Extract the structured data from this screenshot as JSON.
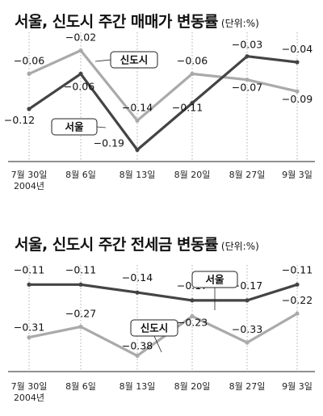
{
  "chart_data": [
    {
      "type": "line",
      "title": "서울, 신도시 주간 매매가 변동률",
      "unit": "(단위:%)",
      "categories": [
        "7월 30일",
        "8월 6일",
        "8월 13일",
        "8월 20일",
        "8월 27일",
        "9월 3일"
      ],
      "categories_sub": [
        "2004년",
        "",
        "",
        "",
        "",
        ""
      ],
      "ylim": [
        -0.21,
        0.0
      ],
      "grid": true,
      "series": [
        {
          "name": "신도시",
          "color": "#aaaaaa",
          "values": [
            -0.06,
            -0.02,
            -0.14,
            -0.06,
            -0.07,
            -0.09
          ],
          "labels": [
            "−0.06",
            "−0.02",
            "−0.14",
            "−0.06",
            "−0.07",
            "−0.09"
          ]
        },
        {
          "name": "서울",
          "color": "#444444",
          "values": [
            -0.12,
            -0.06,
            -0.19,
            -0.11,
            -0.03,
            -0.04
          ],
          "labels": [
            "−0.12",
            "−0.06",
            "−0.19",
            "−0.11",
            "−0.03",
            "−0.04"
          ]
        }
      ]
    },
    {
      "type": "line",
      "title": "서울, 신도시 주간 전세금 변동률",
      "unit": "(단위:%)",
      "categories": [
        "7월 30일",
        "8월 6일",
        "8월 13일",
        "8월 20일",
        "8월 27일",
        "9월 3일"
      ],
      "categories_sub": [
        "2004년",
        "",
        "",
        "",
        "",
        ""
      ],
      "ylim": [
        -0.44,
        -0.06
      ],
      "grid": true,
      "series": [
        {
          "name": "서울",
          "color": "#444444",
          "values": [
            -0.11,
            -0.11,
            -0.14,
            -0.17,
            -0.17,
            -0.11
          ],
          "labels": [
            "−0.11",
            "−0.11",
            "−0.14",
            "−0.17",
            "−0.17",
            "−0.11"
          ]
        },
        {
          "name": "신도시",
          "color": "#aaaaaa",
          "values": [
            -0.31,
            -0.27,
            -0.38,
            -0.23,
            -0.33,
            -0.22
          ],
          "labels": [
            "−0.31",
            "−0.27",
            "−0.38",
            "−0.23",
            "−0.33",
            "−0.22"
          ]
        }
      ]
    }
  ]
}
